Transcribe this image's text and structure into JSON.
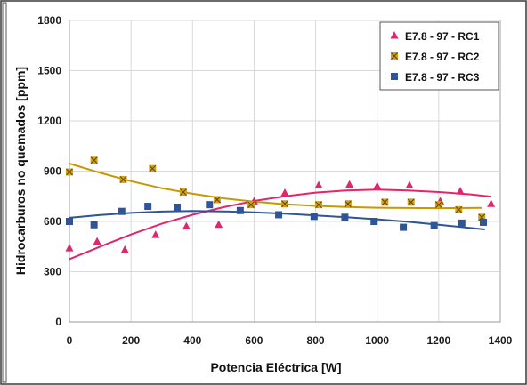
{
  "chart_data": {
    "type": "scatter",
    "title": "",
    "xlabel": "Potencia Eléctrica [W]",
    "ylabel": "Hidrocarburos no quemados [ppm]",
    "xlim": [
      0,
      1400
    ],
    "ylim": [
      0,
      1800
    ],
    "x_ticks": [
      "0",
      "200",
      "400",
      "600",
      "800",
      "1000",
      "1200",
      "1400"
    ],
    "y_ticks": [
      "0",
      "300",
      "600",
      "900",
      "1200",
      "1500",
      "1800"
    ],
    "grid": true,
    "legend_position": "top-right",
    "series": [
      {
        "name": "E7.8 - 97 - RC1",
        "marker": "triangle",
        "color": "#e0266e",
        "trend_color": "#e0266e",
        "points": [
          [
            0,
            440
          ],
          [
            90,
            480
          ],
          [
            180,
            430
          ],
          [
            280,
            520
          ],
          [
            380,
            570
          ],
          [
            485,
            580
          ],
          [
            600,
            720
          ],
          [
            700,
            770
          ],
          [
            810,
            815
          ],
          [
            910,
            820
          ],
          [
            1000,
            810
          ],
          [
            1105,
            815
          ],
          [
            1205,
            720
          ],
          [
            1270,
            780
          ],
          [
            1370,
            705
          ]
        ],
        "trend": [
          [
            0,
            375
          ],
          [
            100,
            450
          ],
          [
            200,
            522
          ],
          [
            300,
            586
          ],
          [
            400,
            640
          ],
          [
            500,
            685
          ],
          [
            600,
            722
          ],
          [
            700,
            750
          ],
          [
            800,
            772
          ],
          [
            900,
            785
          ],
          [
            1000,
            790
          ],
          [
            1100,
            785
          ],
          [
            1200,
            775
          ],
          [
            1300,
            762
          ],
          [
            1370,
            748
          ]
        ]
      },
      {
        "name": "E7.8 - 97 - RC2",
        "marker": "x-square",
        "color": "#d4a017",
        "trend_color": "#c49a00",
        "points": [
          [
            0,
            895
          ],
          [
            80,
            965
          ],
          [
            175,
            850
          ],
          [
            270,
            915
          ],
          [
            370,
            775
          ],
          [
            480,
            730
          ],
          [
            590,
            700
          ],
          [
            700,
            705
          ],
          [
            810,
            700
          ],
          [
            905,
            705
          ],
          [
            1025,
            715
          ],
          [
            1110,
            715
          ],
          [
            1200,
            700
          ],
          [
            1265,
            670
          ],
          [
            1340,
            625
          ]
        ],
        "trend": [
          [
            0,
            945
          ],
          [
            100,
            890
          ],
          [
            200,
            840
          ],
          [
            300,
            798
          ],
          [
            400,
            765
          ],
          [
            500,
            738
          ],
          [
            600,
            718
          ],
          [
            700,
            703
          ],
          [
            800,
            693
          ],
          [
            900,
            686
          ],
          [
            1000,
            682
          ],
          [
            1100,
            680
          ],
          [
            1200,
            679
          ],
          [
            1300,
            680
          ],
          [
            1340,
            681
          ]
        ]
      },
      {
        "name": "E7.8 - 97 - RC3",
        "marker": "square",
        "color": "#2f5597",
        "trend_color": "#2f5597",
        "points": [
          [
            0,
            600
          ],
          [
            80,
            580
          ],
          [
            170,
            660
          ],
          [
            255,
            690
          ],
          [
            350,
            685
          ],
          [
            455,
            700
          ],
          [
            555,
            665
          ],
          [
            680,
            640
          ],
          [
            795,
            630
          ],
          [
            895,
            625
          ],
          [
            990,
            600
          ],
          [
            1085,
            565
          ],
          [
            1185,
            575
          ],
          [
            1275,
            590
          ],
          [
            1345,
            595
          ]
        ],
        "trend": [
          [
            0,
            622
          ],
          [
            100,
            638
          ],
          [
            200,
            651
          ],
          [
            300,
            659
          ],
          [
            400,
            662
          ],
          [
            500,
            660
          ],
          [
            600,
            654
          ],
          [
            700,
            646
          ],
          [
            800,
            636
          ],
          [
            900,
            625
          ],
          [
            1000,
            613
          ],
          [
            1100,
            598
          ],
          [
            1200,
            580
          ],
          [
            1300,
            562
          ],
          [
            1350,
            552
          ]
        ]
      }
    ]
  }
}
